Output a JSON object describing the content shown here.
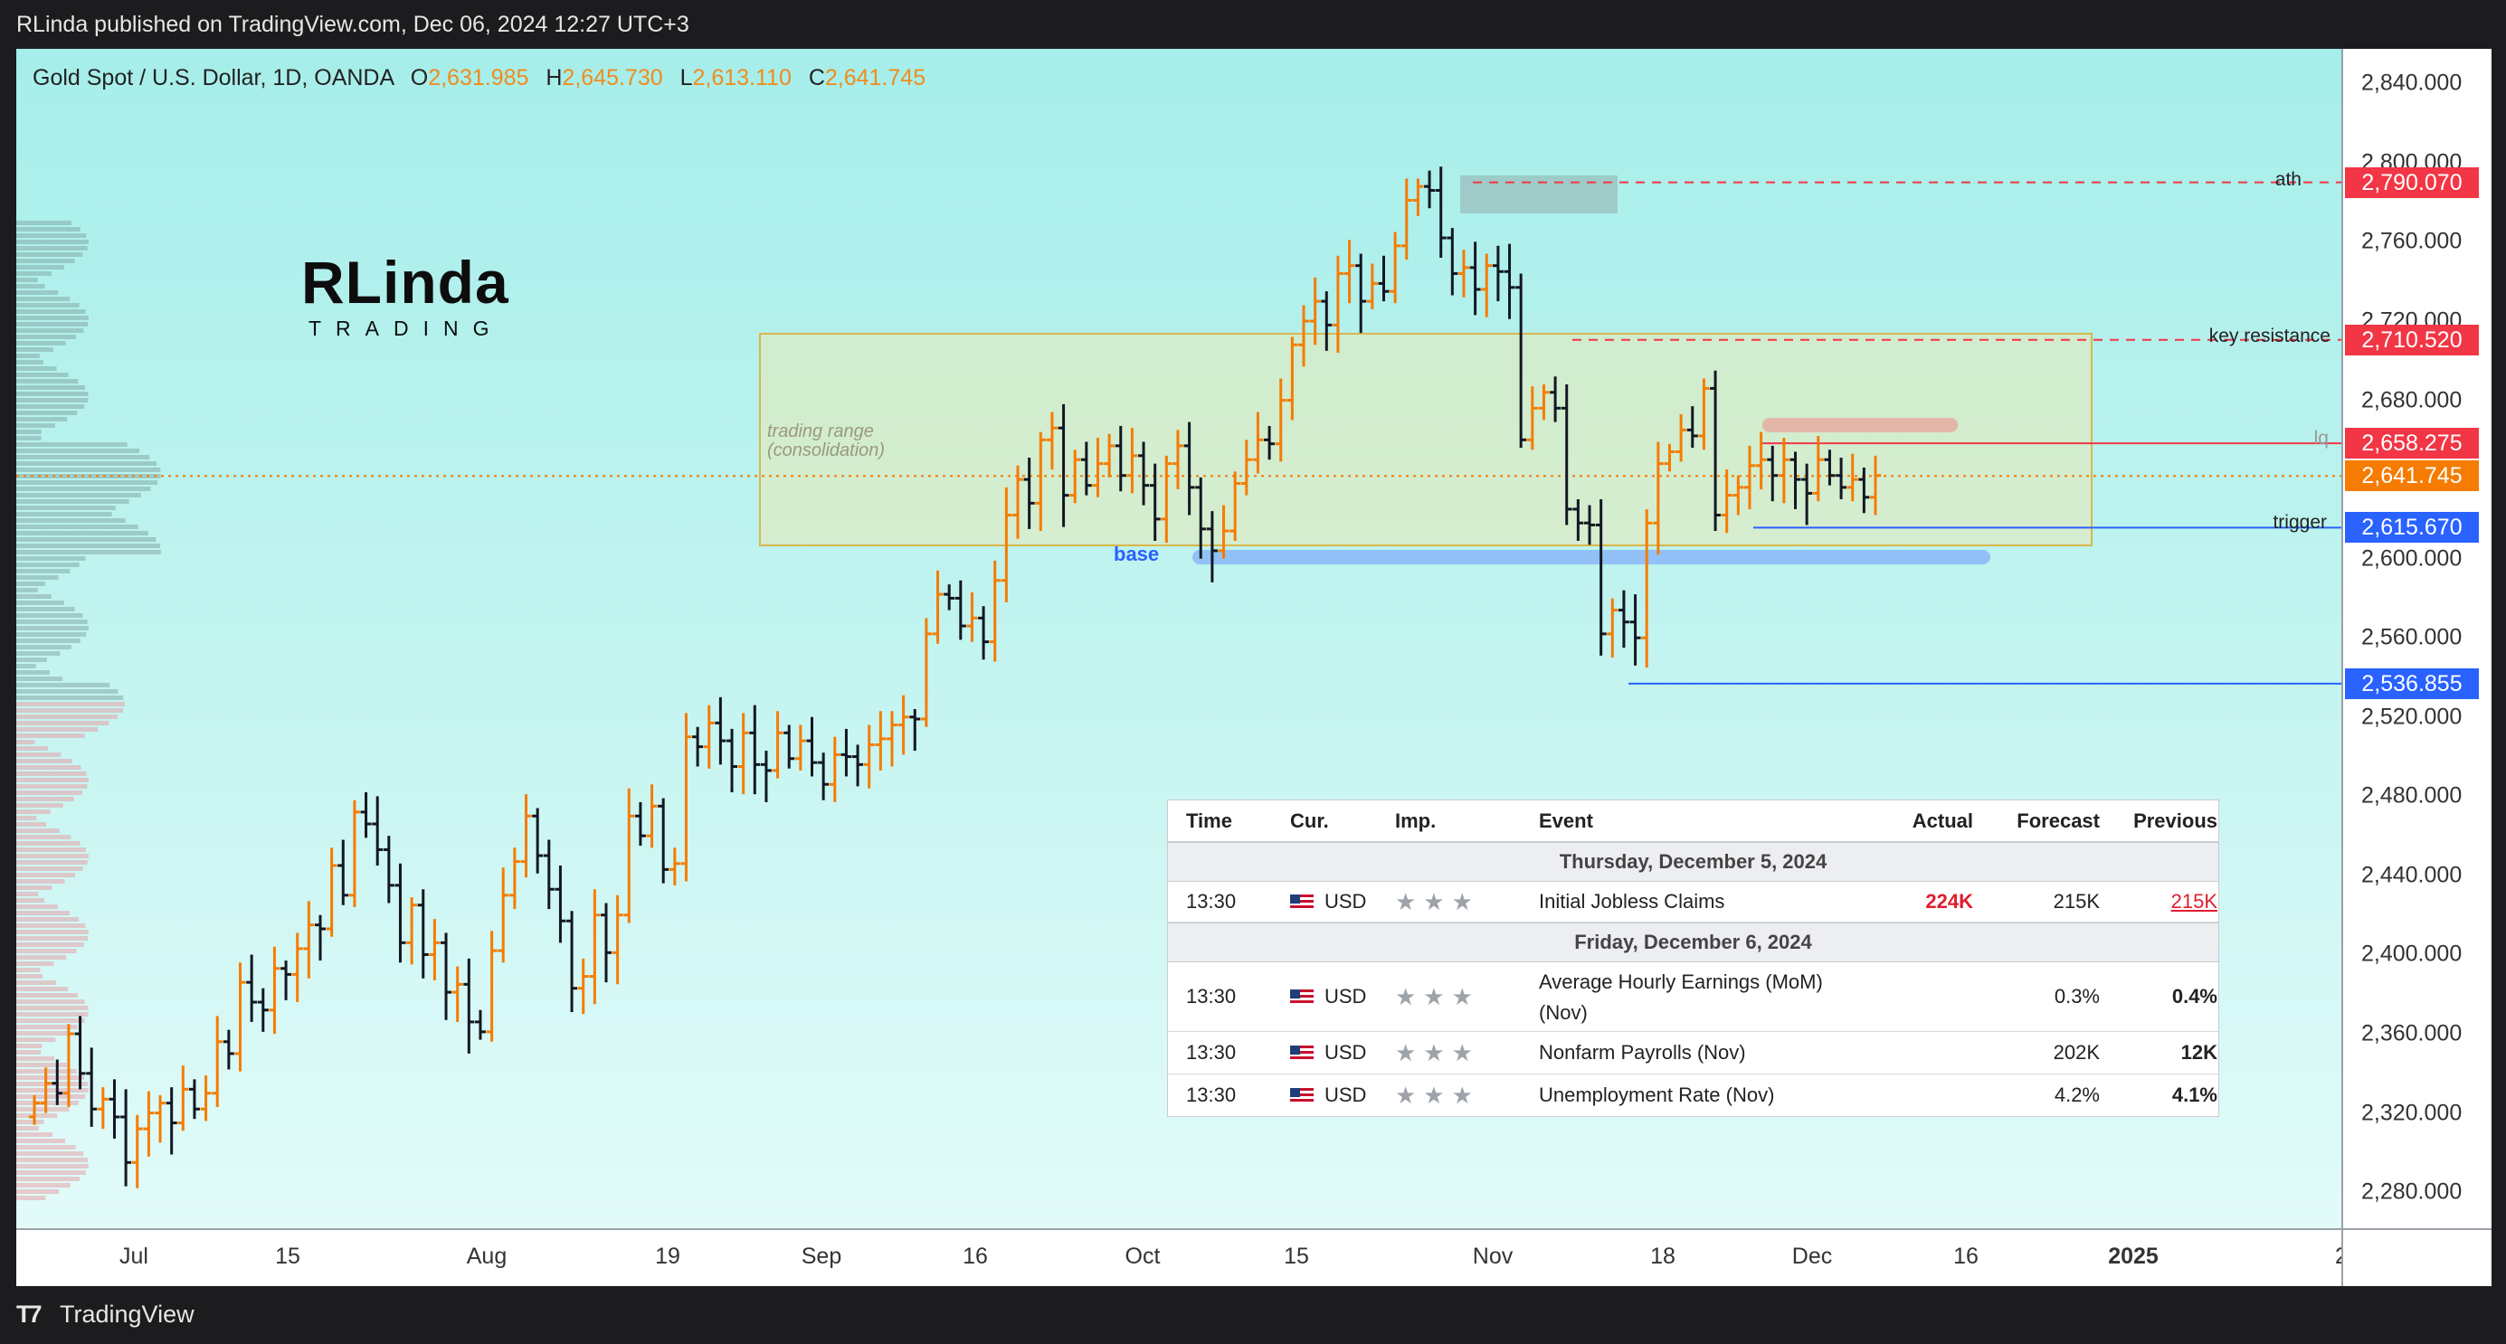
{
  "header": {
    "published": "RLinda published on TradingView.com, Dec 06, 2024 12:27 UTC+3"
  },
  "legend": {
    "symbol": "Gold Spot / U.S. Dollar, 1D, OANDA",
    "ohlc": [
      {
        "k": "O",
        "v": "2,631.985"
      },
      {
        "k": "H",
        "v": "2,645.730"
      },
      {
        "k": "L",
        "v": "2,613.110"
      },
      {
        "k": "C",
        "v": "2,641.745"
      }
    ]
  },
  "logo": {
    "line1": "RLinda",
    "line2": "TRADING"
  },
  "price_axis": {
    "ticks": [
      "2,840.000",
      "2,800.000",
      "2,760.000",
      "2,720.000",
      "2,680.000",
      "2,640.000",
      "2,600.000",
      "2,560.000",
      "2,520.000",
      "2,480.000",
      "2,440.000",
      "2,400.000",
      "2,360.000",
      "2,320.000",
      "2,280.000"
    ],
    "tick_values": [
      2840,
      2800,
      2760,
      2720,
      2680,
      2640,
      2600,
      2560,
      2520,
      2480,
      2440,
      2400,
      2360,
      2320,
      2280
    ]
  },
  "price_labels": [
    {
      "text": "2,790.070",
      "value": 2790.07,
      "color": "#f23645"
    },
    {
      "text": "2,710.520",
      "value": 2710.52,
      "color": "#f23645"
    },
    {
      "text": "2,658.275",
      "value": 2658.275,
      "color": "#f23645"
    },
    {
      "text": "2,641.745",
      "value": 2641.745,
      "color": "#f57c00"
    },
    {
      "text": "2,615.670",
      "value": 2615.67,
      "color": "#2962ff"
    },
    {
      "text": "2,536.855",
      "value": 2536.855,
      "color": "#2962ff"
    }
  ],
  "time_axis": {
    "ticks": [
      {
        "label": "Jul",
        "bold": false
      },
      {
        "label": "15",
        "bold": false
      },
      {
        "label": "Aug",
        "bold": false
      },
      {
        "label": "19",
        "bold": false
      },
      {
        "label": "Sep",
        "bold": false
      },
      {
        "label": "16",
        "bold": false
      },
      {
        "label": "Oct",
        "bold": false
      },
      {
        "label": "15",
        "bold": false
      },
      {
        "label": "Nov",
        "bold": false
      },
      {
        "label": "18",
        "bold": false
      },
      {
        "label": "Dec",
        "bold": false
      },
      {
        "label": "16",
        "bold": false
      },
      {
        "label": "2025",
        "bold": true
      },
      {
        "label": "2",
        "bold": false
      }
    ]
  },
  "annotations": {
    "ath": "ath",
    "key_resistance": "key resistance",
    "lq": "lq",
    "trigger": "trigger",
    "base": "base",
    "range_line1": "trading range",
    "range_line2": "(consolidation)"
  },
  "calendar": {
    "headers": {
      "time": "Time",
      "cur": "Cur.",
      "imp": "Imp.",
      "event": "Event",
      "actual": "Actual",
      "forecast": "Forecast",
      "previous": "Previous"
    },
    "days": [
      {
        "date": "Thursday, December 5, 2024",
        "events": [
          {
            "time": "13:30",
            "cur": "USD",
            "stars": "★★★",
            "event": "Initial Jobless Claims",
            "actual": "224K",
            "forecast": "215K",
            "previous": "215K"
          }
        ]
      },
      {
        "date": "Friday, December 6, 2024",
        "events": [
          {
            "time": "13:30",
            "cur": "USD",
            "stars": "★★★",
            "event": "Average Hourly Earnings (MoM)",
            "event2": "(Nov)",
            "actual": "",
            "forecast": "0.3%",
            "previous": "0.4%"
          },
          {
            "time": "13:30",
            "cur": "USD",
            "stars": "★★★",
            "event": "Nonfarm Payrolls (Nov)",
            "actual": "",
            "forecast": "202K",
            "previous": "12K"
          },
          {
            "time": "13:30",
            "cur": "USD",
            "stars": "★★★",
            "event": "Unemployment Rate (Nov)",
            "actual": "",
            "forecast": "4.2%",
            "previous": "4.1%"
          }
        ]
      }
    ]
  },
  "footer": {
    "brand": "TradingView"
  },
  "chart_data": {
    "type": "candlestick-ohlc",
    "symbol": "XAUUSD",
    "timeframe": "1D",
    "ylim": [
      2260,
      2860
    ],
    "up_color": "#f57c00",
    "down_color": "#131722",
    "closes": [
      2325,
      2335,
      2330,
      2360,
      2340,
      2322,
      2327,
      2318,
      2295,
      2312,
      2320,
      2325,
      2315,
      2332,
      2322,
      2330,
      2356,
      2350,
      2386,
      2376,
      2372,
      2393,
      2390,
      2403,
      2415,
      2413,
      2445,
      2430,
      2472,
      2466,
      2453,
      2435,
      2406,
      2425,
      2400,
      2406,
      2381,
      2385,
      2366,
      2361,
      2402,
      2430,
      2447,
      2470,
      2450,
      2433,
      2417,
      2383,
      2389,
      2420,
      2401,
      2420,
      2470,
      2460,
      2475,
      2443,
      2446,
      2510,
      2505,
      2517,
      2508,
      2495,
      2512,
      2496,
      2493,
      2512,
      2499,
      2508,
      2497,
      2486,
      2501,
      2500,
      2496,
      2506,
      2509,
      2516,
      2520,
      2519,
      2562,
      2582,
      2580,
      2566,
      2570,
      2558,
      2589,
      2622,
      2640,
      2628,
      2660,
      2666,
      2632,
      2650,
      2637,
      2648,
      2657,
      2642,
      2652,
      2637,
      2620,
      2648,
      2657,
      2636,
      2615,
      2604,
      2614,
      2638,
      2650,
      2660,
      2658,
      2680,
      2708,
      2720,
      2730,
      2718,
      2744,
      2748,
      2730,
      2739,
      2735,
      2758,
      2781,
      2788,
      2786,
      2762,
      2744,
      2747,
      2736,
      2748,
      2745,
      2737,
      2660,
      2676,
      2684,
      2676,
      2625,
      2618,
      2617,
      2562,
      2574,
      2568,
      2560,
      2618,
      2648,
      2654,
      2665,
      2662,
      2686,
      2622,
      2632,
      2636,
      2647,
      2650,
      2642,
      2650,
      2640,
      2633,
      2650,
      2642,
      2636,
      2640,
      2631,
      2642
    ]
  }
}
